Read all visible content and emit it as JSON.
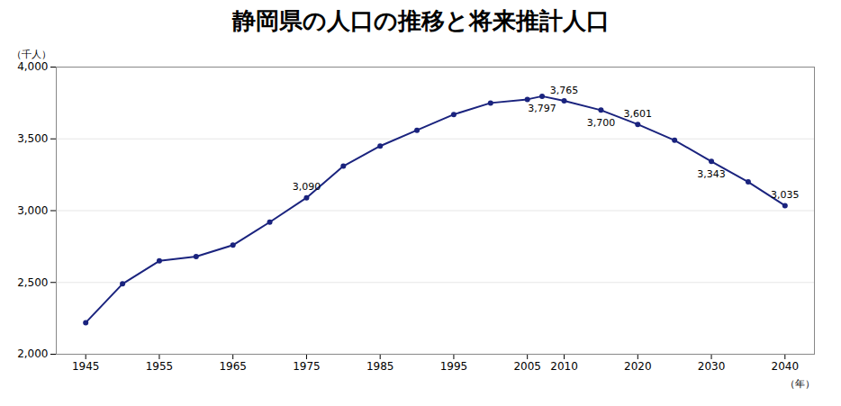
{
  "chart_data": {
    "type": "line",
    "title": "静岡県の人口の推移と将来推計人口",
    "ylabel": "（千人）",
    "xlabel": "（年）",
    "x": [
      1945,
      1950,
      1955,
      1960,
      1965,
      1970,
      1975,
      1980,
      1985,
      1990,
      1995,
      2000,
      2005,
      2007,
      2010,
      2015,
      2020,
      2025,
      2030,
      2035,
      2040
    ],
    "values": [
      2220,
      2490,
      2650,
      2680,
      2760,
      2920,
      3090,
      3310,
      3450,
      3560,
      3670,
      3750,
      3775,
      3797,
      3765,
      3700,
      3601,
      3490,
      3343,
      3200,
      3035
    ],
    "value_labels": [
      null,
      null,
      null,
      null,
      null,
      null,
      "3,090",
      null,
      null,
      null,
      null,
      null,
      null,
      "3,797",
      "3,765",
      "3,700",
      "3,601",
      null,
      "3,343",
      null,
      "3,035"
    ],
    "data_labels": true,
    "color": "#1a237e",
    "marker": "circle",
    "xlim": [
      1941,
      2044
    ],
    "ylim": [
      2000,
      4000
    ],
    "xticks": [
      1945,
      1955,
      1965,
      1975,
      1985,
      1995,
      2005,
      2010,
      2020,
      2030,
      2040
    ],
    "yticks": [
      {
        "value": 2000,
        "label": "2,000"
      },
      {
        "value": 2500,
        "label": "2,500"
      },
      {
        "value": 3000,
        "label": "3,000"
      },
      {
        "value": 3500,
        "label": "3,500"
      },
      {
        "value": 4000,
        "label": "4,000"
      }
    ],
    "grid": true
  }
}
